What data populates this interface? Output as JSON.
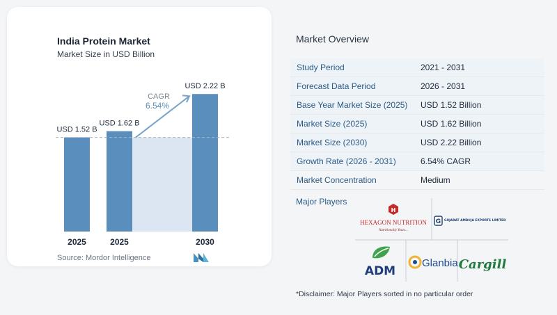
{
  "chart_data": {
    "type": "bar",
    "title": "India Protein Market",
    "subtitle": "Market Size in USD Billion",
    "categories": [
      "2025",
      "2025",
      "2030"
    ],
    "values": [
      1.52,
      1.62,
      2.22
    ],
    "value_labels": [
      "USD 1.52 B",
      "USD 1.62 B",
      "USD 2.22 B"
    ],
    "cagr_label": "CAGR",
    "cagr_value": "6.54%",
    "ylim": [
      0,
      2.6
    ],
    "grid": false,
    "bar_color": "#5a8fbd",
    "projection_fill": "#dbe6f2"
  },
  "source": "Source: Mordor Intelligence",
  "overview": {
    "title": "Market Overview",
    "rows": [
      {
        "key": "Study Period",
        "value": "2021 - 2031"
      },
      {
        "key": "Forecast Data Period",
        "value": "2026 - 2031"
      },
      {
        "key": "Base Year Market Size (2025)",
        "value": "USD 1.52 Billion"
      },
      {
        "key": "Market Size (2025)",
        "value": "USD 1.62 Billion"
      },
      {
        "key": "Market Size (2030)",
        "value": "USD 2.22 Billion"
      },
      {
        "key": "Growth Rate (2026 - 2031)",
        "value": "6.54% CAGR"
      },
      {
        "key": "Market Concentration",
        "value": "Medium"
      }
    ]
  },
  "players": {
    "label": "Major Players",
    "logos": {
      "hexagon": "HEXAGON NUTRITION",
      "hexagon_tag": "Nutritionally Yours...",
      "gujarat": "GUJARAT AMBUJA EXPORTS LIMITED",
      "adm": "ADM",
      "glanbia": "Glanbia",
      "cargill": "Cargill"
    }
  },
  "disclaimer": "*Disclaimer: Major Players sorted in no particular order"
}
